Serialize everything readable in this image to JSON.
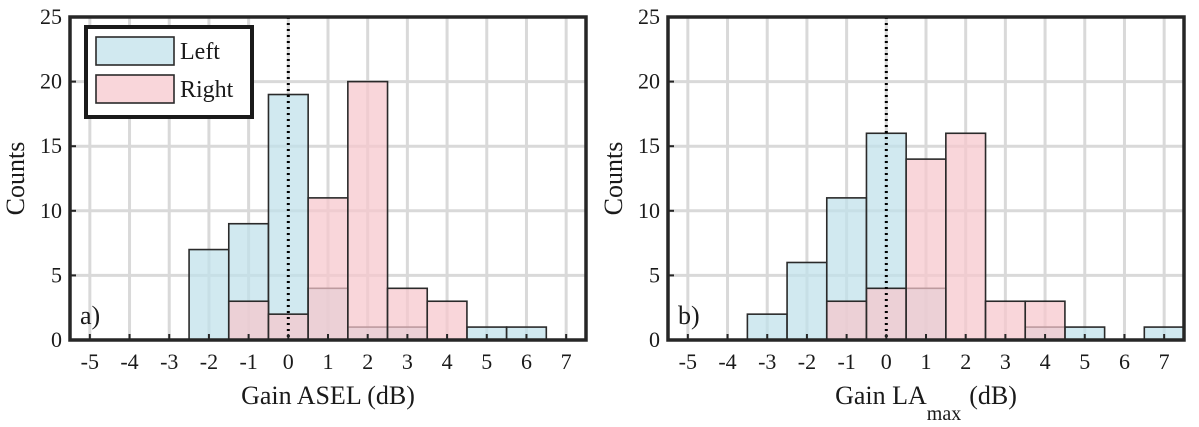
{
  "chart_data": [
    {
      "type": "bar",
      "panel_label": "a)",
      "xlabel": "Gain ASEL (dB)",
      "xlabel_sub": "",
      "ylabel": "Counts",
      "xlim": [
        -5.5,
        7.5
      ],
      "ylim": [
        0,
        25
      ],
      "xticks": [
        -5,
        -4,
        -3,
        -2,
        -1,
        0,
        1,
        2,
        3,
        4,
        5,
        6,
        7
      ],
      "yticks": [
        0,
        5,
        10,
        15,
        20,
        25
      ],
      "xtick_labels": [
        "-5",
        "-4",
        "-3",
        "-2",
        "-1",
        "0",
        "1",
        "2",
        "3",
        "4",
        "5",
        "6",
        "7"
      ],
      "ytick_labels": [
        "0",
        "5",
        "10",
        "15",
        "20",
        "25"
      ],
      "grid": true,
      "reference_line_x": 0,
      "legend": {
        "position": "top-left",
        "entries": [
          "Left",
          "Right"
        ]
      },
      "series": [
        {
          "name": "Left",
          "color": "#bfe0ea",
          "bins": [
            {
              "x": -2,
              "y": 7
            },
            {
              "x": -1,
              "y": 9
            },
            {
              "x": 0,
              "y": 19
            },
            {
              "x": 1,
              "y": 4
            },
            {
              "x": 2,
              "y": 1
            },
            {
              "x": 3,
              "y": 1
            },
            {
              "x": 5,
              "y": 1
            },
            {
              "x": 6,
              "y": 1
            }
          ]
        },
        {
          "name": "Right",
          "color": "#f6c6cc",
          "bins": [
            {
              "x": -1,
              "y": 3
            },
            {
              "x": 0,
              "y": 2
            },
            {
              "x": 1,
              "y": 11
            },
            {
              "x": 2,
              "y": 20
            },
            {
              "x": 3,
              "y": 4
            },
            {
              "x": 4,
              "y": 3
            }
          ]
        }
      ]
    },
    {
      "type": "bar",
      "panel_label": "b)",
      "xlabel": "Gain LA",
      "xlabel_sub": "max",
      "xlabel_tail": "(dB)",
      "ylabel": "Counts",
      "xlim": [
        -5.5,
        7.5
      ],
      "ylim": [
        0,
        25
      ],
      "xticks": [
        -5,
        -4,
        -3,
        -2,
        -1,
        0,
        1,
        2,
        3,
        4,
        5,
        6,
        7
      ],
      "yticks": [
        0,
        5,
        10,
        15,
        20,
        25
      ],
      "xtick_labels": [
        "-5",
        "-4",
        "-3",
        "-2",
        "-1",
        "0",
        "1",
        "2",
        "3",
        "4",
        "5",
        "6",
        "7"
      ],
      "ytick_labels": [
        "0",
        "5",
        "10",
        "15",
        "20",
        "25"
      ],
      "grid": true,
      "reference_line_x": 0,
      "series": [
        {
          "name": "Left",
          "color": "#bfe0ea",
          "bins": [
            {
              "x": -3,
              "y": 2
            },
            {
              "x": -2,
              "y": 6
            },
            {
              "x": -1,
              "y": 11
            },
            {
              "x": 0,
              "y": 16
            },
            {
              "x": 1,
              "y": 4
            },
            {
              "x": 4,
              "y": 1
            },
            {
              "x": 5,
              "y": 1
            },
            {
              "x": 7,
              "y": 1
            }
          ]
        },
        {
          "name": "Right",
          "color": "#f6c6cc",
          "bins": [
            {
              "x": -1,
              "y": 3
            },
            {
              "x": 0,
              "y": 4
            },
            {
              "x": 1,
              "y": 14
            },
            {
              "x": 2,
              "y": 16
            },
            {
              "x": 3,
              "y": 3
            },
            {
              "x": 4,
              "y": 3
            }
          ]
        }
      ]
    }
  ]
}
